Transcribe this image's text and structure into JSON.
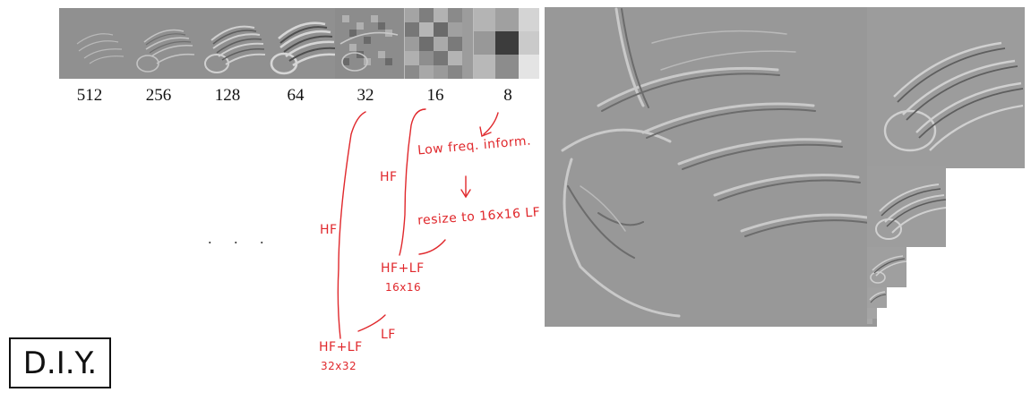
{
  "pyramid_strip": {
    "scales": [
      "512",
      "256",
      "128",
      "64",
      "32",
      "16",
      "8"
    ]
  },
  "annotations": {
    "low_freq_note": "Low freq. inform.",
    "resize_note": "resize to 16x16 LF",
    "hf_small": "HF",
    "hf_large": "HF",
    "hflf_16_line1": "HF+LF",
    "hflf_16_line2": "16x16",
    "lf_label": "LF",
    "hflf_32_line1": "HF+LF",
    "hflf_32_line2": "32x32",
    "ellipsis": ". . ."
  },
  "diy_label": "D.I.Y.",
  "colors": {
    "annotation": "#e0282c",
    "panel_gray": "#9a9a9a"
  }
}
